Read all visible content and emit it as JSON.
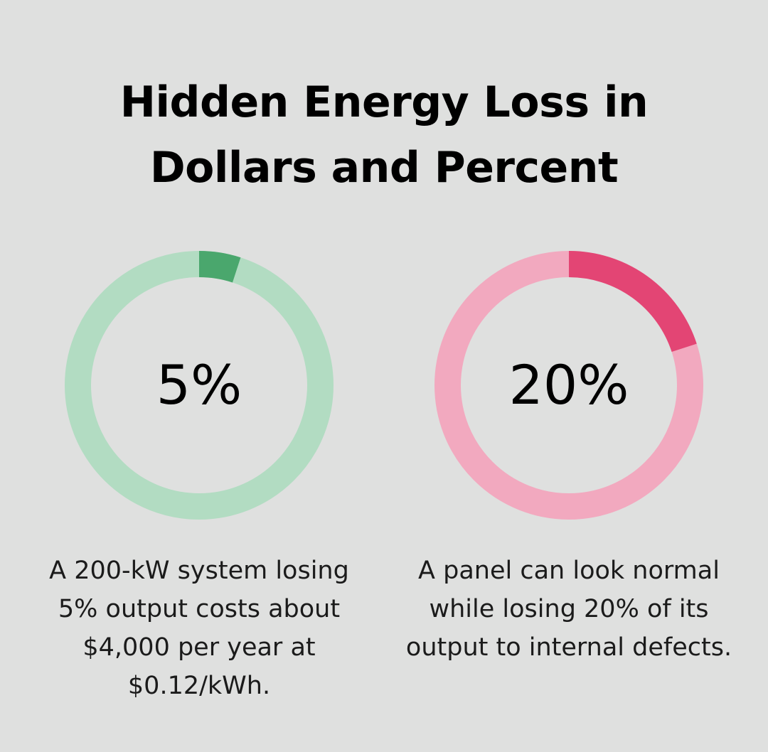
{
  "title_lines": [
    "Hidden Energy Loss in",
    "Dollars and Percent"
  ],
  "chart_data": [
    {
      "type": "pie",
      "value_label": "5%",
      "values": [
        5,
        95
      ],
      "colors": {
        "highlight": "#4aa76d",
        "track": "#b2dcc2"
      },
      "caption": "A 200-kW system losing 5% output costs about $4,000 per year at $0.12/kWh."
    },
    {
      "type": "pie",
      "value_label": "20%",
      "values": [
        20,
        80
      ],
      "colors": {
        "highlight": "#e34574",
        "track": "#f2a9bf"
      },
      "caption": "A panel can look normal while losing 20% of its output to internal defects."
    }
  ]
}
